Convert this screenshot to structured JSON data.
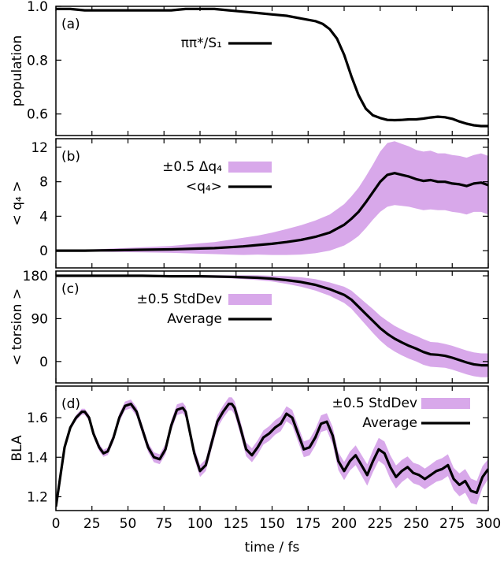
{
  "colors": {
    "band": "#d8a8ea",
    "line": "#000000",
    "frame": "#000000"
  },
  "chart_data": [
    {
      "type": "line",
      "panel_tag": "(a)",
      "ylabel": "population",
      "ylim": [
        0.52,
        1.0
      ],
      "yticks": [
        "0.6",
        "0.8",
        "1.0"
      ],
      "ytick_values": [
        0.6,
        0.8,
        1.0
      ],
      "legend": [
        "ππ*/S₁"
      ],
      "series": [
        {
          "name": "ππ*/S₁",
          "x": [
            0,
            5,
            10,
            20,
            30,
            40,
            50,
            60,
            70,
            80,
            90,
            100,
            110,
            120,
            130,
            140,
            150,
            160,
            170,
            180,
            185,
            190,
            195,
            200,
            205,
            210,
            215,
            220,
            225,
            230,
            235,
            240,
            245,
            250,
            255,
            260,
            265,
            270,
            275,
            280,
            285,
            290,
            295,
            300
          ],
          "y": [
            0.99,
            0.99,
            0.99,
            0.985,
            0.985,
            0.985,
            0.985,
            0.985,
            0.985,
            0.985,
            0.99,
            0.99,
            0.99,
            0.985,
            0.98,
            0.975,
            0.97,
            0.965,
            0.955,
            0.945,
            0.935,
            0.915,
            0.88,
            0.82,
            0.74,
            0.67,
            0.62,
            0.595,
            0.585,
            0.578,
            0.577,
            0.578,
            0.58,
            0.58,
            0.583,
            0.587,
            0.59,
            0.588,
            0.582,
            0.572,
            0.564,
            0.558,
            0.555,
            0.555
          ]
        }
      ]
    },
    {
      "type": "line",
      "panel_tag": "(b)",
      "ylabel": "< q₄ >",
      "ylim": [
        -2,
        13
      ],
      "yticks": [
        "0",
        "4",
        "8",
        "12"
      ],
      "ytick_values": [
        0,
        4,
        8,
        12
      ],
      "legend": [
        "±0.5 Δq₄",
        "<q₄>"
      ],
      "series": [
        {
          "name": "<q₄>",
          "x": [
            0,
            20,
            40,
            60,
            80,
            100,
            110,
            120,
            130,
            140,
            150,
            160,
            170,
            180,
            190,
            200,
            205,
            210,
            215,
            220,
            225,
            230,
            235,
            240,
            245,
            250,
            255,
            260,
            265,
            270,
            275,
            280,
            285,
            290,
            295,
            300
          ],
          "y": [
            0,
            0,
            0.05,
            0.1,
            0.15,
            0.25,
            0.3,
            0.4,
            0.5,
            0.65,
            0.8,
            1.0,
            1.25,
            1.6,
            2.1,
            3.0,
            3.7,
            4.5,
            5.6,
            6.8,
            8.0,
            8.8,
            9.0,
            8.8,
            8.6,
            8.3,
            8.1,
            8.2,
            8.0,
            8.0,
            7.8,
            7.7,
            7.5,
            7.8,
            7.9,
            7.6
          ],
          "spread": [
            0.05,
            0.1,
            0.2,
            0.3,
            0.4,
            0.6,
            0.7,
            0.85,
            1.0,
            1.1,
            1.3,
            1.5,
            1.7,
            1.9,
            2.1,
            2.4,
            2.6,
            2.8,
            3.0,
            3.2,
            3.5,
            3.7,
            3.7,
            3.6,
            3.5,
            3.4,
            3.4,
            3.4,
            3.3,
            3.3,
            3.3,
            3.3,
            3.3,
            3.3,
            3.4,
            3.4
          ]
        }
      ]
    },
    {
      "type": "line",
      "panel_tag": "(c)",
      "ylabel": "< torsion >",
      "ylim": [
        -45,
        190
      ],
      "yticks": [
        "0",
        "90",
        "180"
      ],
      "ytick_values": [
        0,
        90,
        180
      ],
      "legend": [
        "±0.5 StdDev",
        "Average"
      ],
      "series": [
        {
          "name": "Average",
          "x": [
            0,
            20,
            40,
            60,
            80,
            100,
            120,
            130,
            140,
            150,
            160,
            170,
            180,
            190,
            200,
            205,
            210,
            215,
            220,
            225,
            230,
            235,
            240,
            245,
            250,
            255,
            260,
            265,
            270,
            275,
            280,
            285,
            290,
            295,
            300
          ],
          "y": [
            180,
            180,
            180,
            180,
            179,
            179,
            178,
            177,
            176,
            174,
            171,
            167,
            161,
            152,
            140,
            130,
            115,
            100,
            85,
            70,
            58,
            48,
            40,
            33,
            27,
            20,
            15,
            14,
            12,
            8,
            3,
            -2,
            -6,
            -8,
            -8
          ],
          "spread": [
            1,
            1,
            1,
            1.5,
            2,
            2.5,
            3,
            4,
            5,
            6,
            8,
            10,
            12,
            14,
            17,
            19,
            21,
            23,
            25,
            26,
            27,
            27,
            27,
            27,
            27,
            27,
            26,
            26,
            25,
            25,
            25,
            25,
            25,
            25,
            25
          ]
        }
      ]
    },
    {
      "type": "line",
      "panel_tag": "(d)",
      "ylabel": "BLA",
      "ylim": [
        1.13,
        1.76
      ],
      "yticks": [
        "1.2",
        "1.4",
        "1.6"
      ],
      "ytick_values": [
        1.2,
        1.4,
        1.6
      ],
      "legend": [
        "±0.5 StdDev",
        "Average"
      ],
      "series": [
        {
          "name": "Average",
          "x": [
            0,
            3,
            6,
            10,
            14,
            18,
            20,
            23,
            26,
            30,
            33,
            36,
            40,
            44,
            48,
            52,
            56,
            60,
            64,
            68,
            72,
            76,
            80,
            84,
            88,
            90,
            92,
            96,
            100,
            104,
            108,
            112,
            116,
            120,
            122,
            124,
            128,
            132,
            136,
            140,
            144,
            148,
            152,
            156,
            160,
            164,
            168,
            172,
            176,
            180,
            184,
            188,
            192,
            196,
            200,
            204,
            208,
            212,
            216,
            220,
            224,
            228,
            232,
            236,
            240,
            244,
            248,
            252,
            256,
            260,
            264,
            268,
            272,
            276,
            280,
            284,
            288,
            292,
            296,
            300
          ],
          "y": [
            1.15,
            1.3,
            1.45,
            1.55,
            1.6,
            1.63,
            1.63,
            1.6,
            1.52,
            1.45,
            1.42,
            1.43,
            1.5,
            1.6,
            1.66,
            1.67,
            1.63,
            1.54,
            1.45,
            1.4,
            1.39,
            1.44,
            1.56,
            1.64,
            1.65,
            1.63,
            1.56,
            1.42,
            1.33,
            1.36,
            1.47,
            1.58,
            1.63,
            1.67,
            1.67,
            1.65,
            1.55,
            1.44,
            1.41,
            1.45,
            1.5,
            1.52,
            1.55,
            1.57,
            1.62,
            1.6,
            1.52,
            1.44,
            1.45,
            1.5,
            1.57,
            1.58,
            1.51,
            1.38,
            1.33,
            1.38,
            1.41,
            1.36,
            1.31,
            1.38,
            1.44,
            1.42,
            1.35,
            1.3,
            1.33,
            1.35,
            1.32,
            1.31,
            1.29,
            1.31,
            1.33,
            1.34,
            1.36,
            1.29,
            1.26,
            1.28,
            1.23,
            1.22,
            1.3,
            1.34
          ],
          "spread": [
            0.005,
            0.008,
            0.01,
            0.012,
            0.014,
            0.015,
            0.015,
            0.016,
            0.017,
            0.018,
            0.018,
            0.019,
            0.02,
            0.021,
            0.022,
            0.022,
            0.023,
            0.024,
            0.024,
            0.025,
            0.025,
            0.026,
            0.026,
            0.027,
            0.027,
            0.028,
            0.028,
            0.029,
            0.03,
            0.03,
            0.031,
            0.032,
            0.032,
            0.033,
            0.033,
            0.034,
            0.034,
            0.035,
            0.035,
            0.036,
            0.036,
            0.037,
            0.037,
            0.038,
            0.038,
            0.039,
            0.04,
            0.04,
            0.041,
            0.042,
            0.042,
            0.043,
            0.044,
            0.045,
            0.046,
            0.048,
            0.05,
            0.052,
            0.054,
            0.056,
            0.058,
            0.06,
            0.06,
            0.058,
            0.056,
            0.054,
            0.052,
            0.052,
            0.052,
            0.053,
            0.054,
            0.055,
            0.055,
            0.056,
            0.058,
            0.06,
            0.062,
            0.06,
            0.055,
            0.05
          ]
        }
      ]
    }
  ],
  "x_axis": {
    "xlabel": "time / fs",
    "xlim": [
      0,
      300
    ],
    "xticks": [
      "0",
      "25",
      "50",
      "75",
      "100",
      "125",
      "150",
      "175",
      "200",
      "225",
      "250",
      "275",
      "300"
    ],
    "xtick_values": [
      0,
      25,
      50,
      75,
      100,
      125,
      150,
      175,
      200,
      225,
      250,
      275,
      300
    ]
  }
}
